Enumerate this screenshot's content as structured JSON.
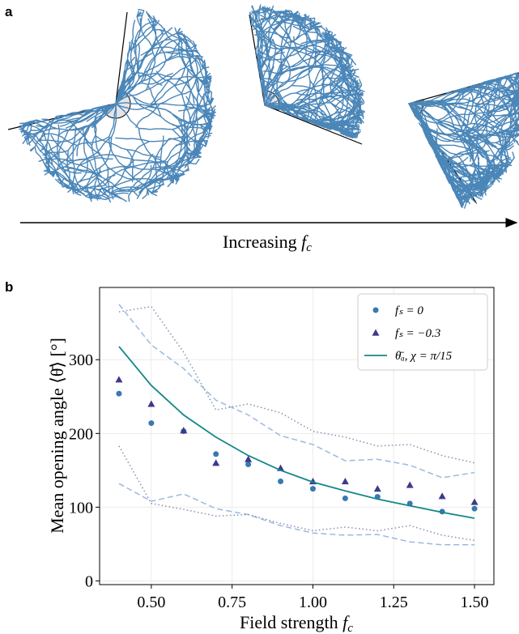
{
  "panel_a": {
    "label": "a",
    "arrow_text": "Increasing",
    "arrow_symbol": "f",
    "arrow_subscript": "c"
  },
  "chart_data": {
    "type": "scatter",
    "panel_label": "b",
    "x_label": {
      "text": "Field strength",
      "symbol": "f",
      "subscript": "c"
    },
    "y_label": "Mean opening angle ⟨θ̄⟩ [°]",
    "x": [
      0.4,
      0.5,
      0.6,
      0.7,
      0.8,
      0.9,
      1.0,
      1.1,
      1.2,
      1.3,
      1.4,
      1.5
    ],
    "series": [
      {
        "color": "#9ab9e0",
        "style": "dashed",
        "values": [
          375,
          320,
          288,
          245,
          225,
          197,
          185,
          163,
          165,
          157,
          140,
          147
        ]
      },
      {
        "color": "#9ab9e0",
        "style": "dashed",
        "values": [
          132,
          108,
          118,
          98,
          90,
          75,
          65,
          62,
          63,
          53,
          49,
          49
        ]
      },
      {
        "color": "#8c8cb0",
        "style": "dotted",
        "values": [
          365,
          372,
          310,
          232,
          240,
          228,
          203,
          195,
          183,
          185,
          170,
          160
        ]
      },
      {
        "color": "#8c8cb0",
        "style": "dotted",
        "values": [
          183,
          105,
          97,
          88,
          90,
          78,
          68,
          73,
          68,
          75,
          62,
          55
        ]
      },
      {
        "name": "fₛ = 0",
        "color": "#3a78b0",
        "style": "circle",
        "values": [
          254,
          214,
          203,
          172,
          158,
          135,
          125,
          112,
          114,
          105,
          94,
          98
        ]
      },
      {
        "name": "fₛ = −0.3",
        "color": "#3d3a8a",
        "style": "triangle",
        "values": [
          273,
          240,
          204,
          160,
          165,
          153,
          135,
          135,
          125,
          130,
          115,
          107
        ]
      },
      {
        "name": "θ̄ₐ, χ = π/15",
        "color": "#14878a",
        "style": "line",
        "values": [
          318,
          265,
          225,
          195,
          170,
          150,
          134,
          122,
          111,
          102,
          93,
          85
        ]
      }
    ],
    "xlim": [
      0.34,
      1.56
    ],
    "ylim": [
      -5,
      398
    ],
    "xticks": [
      {
        "value": 0.5,
        "label": "0.50"
      },
      {
        "value": 0.75,
        "label": "0.75"
      },
      {
        "value": 1.0,
        "label": "1.00"
      },
      {
        "value": 1.25,
        "label": "1.25"
      },
      {
        "value": 1.5,
        "label": "1.50"
      }
    ],
    "yticks": [
      0,
      100,
      200,
      300
    ],
    "grid": true,
    "legend": "upper right"
  }
}
